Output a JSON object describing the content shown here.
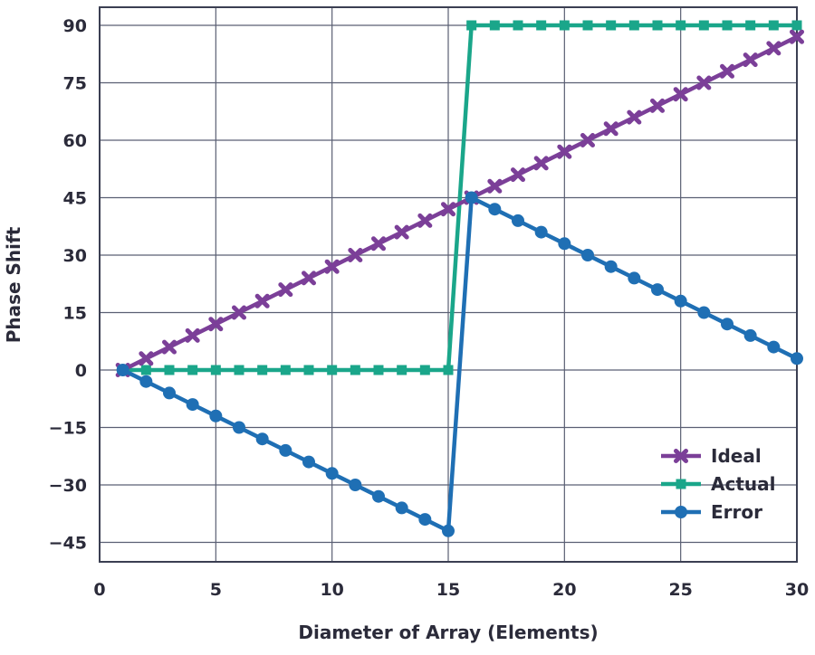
{
  "chart_data": {
    "type": "line",
    "title": "",
    "xlabel": "Diameter of Array (Elements)",
    "ylabel": "Phase Shift",
    "xlim": [
      0,
      30
    ],
    "ylim": [
      -50,
      95
    ],
    "grid": true,
    "legend_position": "bottom-right",
    "x_ticks": [
      0,
      5,
      10,
      15,
      20,
      25,
      30
    ],
    "x_tick_labels": [
      "0",
      "5",
      "10",
      "15",
      "20",
      "25",
      "30"
    ],
    "y_ticks": [
      90,
      75,
      60,
      45,
      30,
      15,
      0,
      -15,
      -30,
      -45
    ],
    "y_tick_labels": [
      "90",
      "75",
      "60",
      "45",
      "30",
      "15",
      "0",
      "−15",
      "−30",
      "−45"
    ],
    "x": [
      1,
      2,
      3,
      4,
      5,
      6,
      7,
      8,
      9,
      10,
      11,
      12,
      13,
      14,
      15,
      16,
      17,
      18,
      19,
      20,
      21,
      22,
      23,
      24,
      25,
      26,
      27,
      28,
      29,
      30
    ],
    "series": [
      {
        "name": "Ideal",
        "color": "#7b3f98",
        "marker": "x",
        "values": [
          0,
          3,
          6,
          9,
          12,
          15,
          18,
          21,
          24,
          27,
          30,
          33,
          36,
          39,
          42,
          45,
          48,
          51,
          54,
          57,
          60,
          63,
          66,
          69,
          72,
          75,
          78,
          81,
          84,
          87
        ]
      },
      {
        "name": "Actual",
        "color": "#1aa68a",
        "marker": "square",
        "values": [
          0,
          0,
          0,
          0,
          0,
          0,
          0,
          0,
          0,
          0,
          0,
          0,
          0,
          0,
          0,
          90,
          90,
          90,
          90,
          90,
          90,
          90,
          90,
          90,
          90,
          90,
          90,
          90,
          90,
          90
        ]
      },
      {
        "name": "Error",
        "color": "#1f6fb4",
        "marker": "circle",
        "values": [
          0,
          -3,
          -6,
          -9,
          -12,
          -15,
          -18,
          -21,
          -24,
          -27,
          -30,
          -33,
          -36,
          -39,
          -42,
          45,
          42,
          39,
          36,
          33,
          30,
          27,
          24,
          21,
          18,
          15,
          12,
          9,
          6,
          3
        ]
      }
    ]
  }
}
